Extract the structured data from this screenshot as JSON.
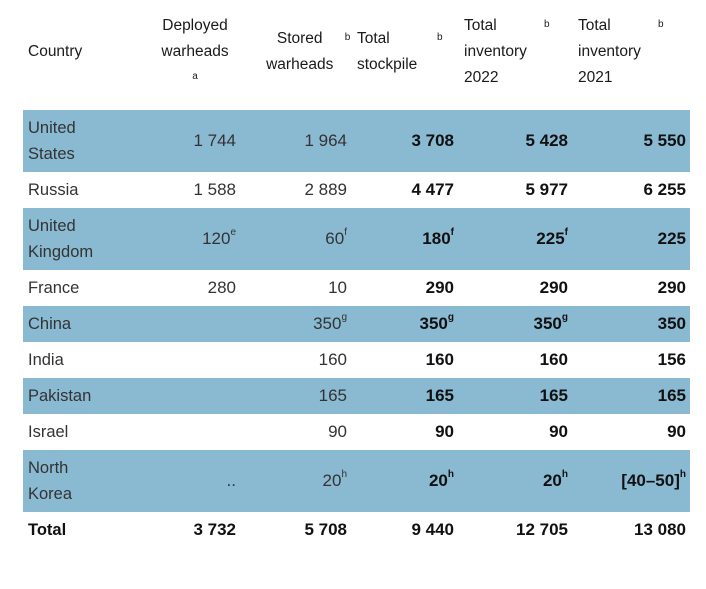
{
  "headers": [
    {
      "text": "Country",
      "sup": ""
    },
    {
      "text": "Deployed warheads",
      "sup": "a"
    },
    {
      "text": "Stored warheads",
      "sup": "b"
    },
    {
      "text": "Total stockpile",
      "sup": "b"
    },
    {
      "text": "Total inventory 2022",
      "sup": "b"
    },
    {
      "text": "Total inventory 2021",
      "sup": "b"
    }
  ],
  "rows": [
    {
      "country": "United States",
      "cells": [
        {
          "v": "1 744",
          "sup": ""
        },
        {
          "v": "1 964",
          "sup": ""
        },
        {
          "v": "3 708",
          "sup": ""
        },
        {
          "v": "5 428",
          "sup": ""
        },
        {
          "v": "5 550",
          "sup": ""
        }
      ]
    },
    {
      "country": "Russia",
      "cells": [
        {
          "v": "1 588",
          "sup": ""
        },
        {
          "v": "2 889",
          "sup": ""
        },
        {
          "v": "4 477",
          "sup": ""
        },
        {
          "v": "5 977",
          "sup": ""
        },
        {
          "v": "6 255",
          "sup": ""
        }
      ]
    },
    {
      "country": "United Kingdom",
      "cells": [
        {
          "v": "120",
          "sup": "e"
        },
        {
          "v": "60",
          "sup": "f"
        },
        {
          "v": "180",
          "sup": "f"
        },
        {
          "v": "225",
          "sup": "f"
        },
        {
          "v": "225",
          "sup": ""
        }
      ]
    },
    {
      "country": "France",
      "cells": [
        {
          "v": "280",
          "sup": ""
        },
        {
          "v": "10",
          "sup": ""
        },
        {
          "v": "290",
          "sup": ""
        },
        {
          "v": "290",
          "sup": ""
        },
        {
          "v": "290",
          "sup": ""
        }
      ]
    },
    {
      "country": "China",
      "cells": [
        {
          "v": "",
          "sup": ""
        },
        {
          "v": "350",
          "sup": "g"
        },
        {
          "v": "350",
          "sup": "g"
        },
        {
          "v": "350",
          "sup": "g"
        },
        {
          "v": "350",
          "sup": ""
        }
      ]
    },
    {
      "country": "India",
      "cells": [
        {
          "v": "",
          "sup": ""
        },
        {
          "v": "160",
          "sup": ""
        },
        {
          "v": "160",
          "sup": ""
        },
        {
          "v": "160",
          "sup": ""
        },
        {
          "v": "156",
          "sup": ""
        }
      ]
    },
    {
      "country": "Pakistan",
      "cells": [
        {
          "v": "",
          "sup": ""
        },
        {
          "v": "165",
          "sup": ""
        },
        {
          "v": "165",
          "sup": ""
        },
        {
          "v": "165",
          "sup": ""
        },
        {
          "v": "165",
          "sup": ""
        }
      ]
    },
    {
      "country": "Israel",
      "cells": [
        {
          "v": "",
          "sup": ""
        },
        {
          "v": "90",
          "sup": ""
        },
        {
          "v": "90",
          "sup": ""
        },
        {
          "v": "90",
          "sup": ""
        },
        {
          "v": "90",
          "sup": ""
        }
      ]
    },
    {
      "country": "North Korea",
      "cells": [
        {
          "v": "..",
          "sup": ""
        },
        {
          "v": "20",
          "sup": "h"
        },
        {
          "v": "20",
          "sup": "h"
        },
        {
          "v": "20",
          "sup": "h"
        },
        {
          "v": "[40–50]",
          "sup": "h"
        }
      ]
    }
  ],
  "total": {
    "country": "Total",
    "cells": [
      {
        "v": "3 732",
        "sup": ""
      },
      {
        "v": "5 708",
        "sup": ""
      },
      {
        "v": "9 440",
        "sup": ""
      },
      {
        "v": "12 705",
        "sup": ""
      },
      {
        "v": "13 080",
        "sup": ""
      }
    ]
  },
  "colors": {
    "stripe": "#8ab9d2"
  }
}
